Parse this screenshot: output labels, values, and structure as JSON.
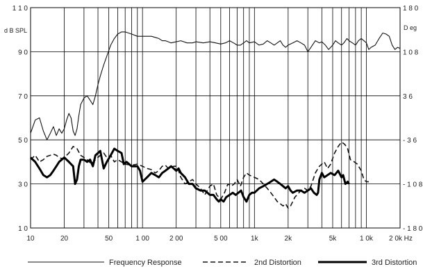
{
  "chart_data": {
    "type": "line",
    "title": "",
    "xlabel": "",
    "ylabel": "d B SPL",
    "ylabel_right": "D eg",
    "x_scale": "log",
    "xlim": [
      10,
      20000
    ],
    "ylim": [
      10,
      110
    ],
    "ylim_right": [
      -180,
      180
    ],
    "grid": true,
    "legend_position": "bottom",
    "x_tick_labels": [
      {
        "v": 10,
        "t": "10"
      },
      {
        "v": 20,
        "t": "20"
      },
      {
        "v": 50,
        "t": "50"
      },
      {
        "v": 100,
        "t": "1 00"
      },
      {
        "v": 200,
        "t": "2 00"
      },
      {
        "v": 500,
        "t": "5 00"
      },
      {
        "v": 1000,
        "t": "1k"
      },
      {
        "v": 2000,
        "t": "2k"
      },
      {
        "v": 5000,
        "t": "5k"
      },
      {
        "v": 10000,
        "t": "1 0k"
      },
      {
        "v": 20000,
        "t": "2 0k Hz"
      }
    ],
    "y_tick_labels": [
      {
        "v": 110,
        "t": "1 1 0"
      },
      {
        "v": 90,
        "t": "9 0"
      },
      {
        "v": 70,
        "t": "7 0"
      },
      {
        "v": 50,
        "t": "5 0"
      },
      {
        "v": 30,
        "t": "3 0"
      },
      {
        "v": 10,
        "t": "1 0"
      }
    ],
    "y_tick_labels_right": [
      {
        "v": 180,
        "t": "1 8 0"
      },
      {
        "v": 108,
        "t": "1 0 8"
      },
      {
        "v": 36,
        "t": "3 6"
      },
      {
        "v": -36,
        "t": "- 3 6"
      },
      {
        "v": -108,
        "t": "- 1 0 8"
      },
      {
        "v": -180,
        "t": "- 1 8 0"
      }
    ],
    "series": [
      {
        "name": "Frequency Response",
        "style": "solid-thin",
        "points": [
          [
            10,
            53
          ],
          [
            11,
            59
          ],
          [
            12,
            60
          ],
          [
            13,
            54
          ],
          [
            14,
            50
          ],
          [
            15,
            53
          ],
          [
            16,
            56
          ],
          [
            17,
            52
          ],
          [
            18,
            55
          ],
          [
            19,
            53
          ],
          [
            20,
            55
          ],
          [
            21,
            59
          ],
          [
            22,
            62
          ],
          [
            23,
            60
          ],
          [
            24,
            54
          ],
          [
            25,
            52
          ],
          [
            26,
            55
          ],
          [
            27,
            61
          ],
          [
            28,
            66
          ],
          [
            30,
            69
          ],
          [
            32,
            70
          ],
          [
            34,
            68
          ],
          [
            36,
            66
          ],
          [
            38,
            70
          ],
          [
            40,
            75
          ],
          [
            42,
            79
          ],
          [
            45,
            84
          ],
          [
            48,
            88
          ],
          [
            52,
            93
          ],
          [
            56,
            96
          ],
          [
            60,
            98
          ],
          [
            65,
            99
          ],
          [
            70,
            99
          ],
          [
            80,
            98
          ],
          [
            90,
            97
          ],
          [
            100,
            97
          ],
          [
            110,
            97
          ],
          [
            120,
            97
          ],
          [
            130,
            96.5
          ],
          [
            140,
            96
          ],
          [
            150,
            95
          ],
          [
            160,
            95
          ],
          [
            170,
            94.5
          ],
          [
            180,
            94
          ],
          [
            200,
            94.5
          ],
          [
            220,
            95
          ],
          [
            250,
            94
          ],
          [
            280,
            94
          ],
          [
            300,
            94.5
          ],
          [
            350,
            94
          ],
          [
            400,
            94.5
          ],
          [
            450,
            94
          ],
          [
            500,
            93.5
          ],
          [
            550,
            94
          ],
          [
            600,
            95
          ],
          [
            650,
            94
          ],
          [
            700,
            93
          ],
          [
            750,
            93
          ],
          [
            800,
            94
          ],
          [
            850,
            95
          ],
          [
            900,
            94
          ],
          [
            1000,
            94.5
          ],
          [
            1100,
            93
          ],
          [
            1200,
            93.5
          ],
          [
            1300,
            95
          ],
          [
            1400,
            94
          ],
          [
            1500,
            93
          ],
          [
            1600,
            94
          ],
          [
            1700,
            95
          ],
          [
            1800,
            93
          ],
          [
            1900,
            92
          ],
          [
            2000,
            93
          ],
          [
            2200,
            94
          ],
          [
            2400,
            95
          ],
          [
            2600,
            94
          ],
          [
            2800,
            93
          ],
          [
            3000,
            90
          ],
          [
            3200,
            92
          ],
          [
            3500,
            95
          ],
          [
            3800,
            94
          ],
          [
            4000,
            94.5
          ],
          [
            4300,
            93
          ],
          [
            4600,
            91
          ],
          [
            5000,
            93
          ],
          [
            5300,
            95
          ],
          [
            5600,
            94
          ],
          [
            6000,
            93
          ],
          [
            6300,
            94
          ],
          [
            6700,
            96
          ],
          [
            7000,
            95
          ],
          [
            7500,
            94
          ],
          [
            8000,
            93
          ],
          [
            8500,
            95
          ],
          [
            9000,
            96
          ],
          [
            9500,
            95
          ],
          [
            10000,
            94
          ],
          [
            10500,
            91
          ],
          [
            11000,
            92
          ],
          [
            12000,
            93
          ],
          [
            13000,
            96
          ],
          [
            14000,
            98.5
          ],
          [
            15000,
            98
          ],
          [
            16000,
            97
          ],
          [
            17000,
            93
          ],
          [
            18000,
            91
          ],
          [
            19000,
            92
          ],
          [
            20000,
            91.5
          ]
        ]
      },
      {
        "name": "2nd Distortion",
        "style": "dashed",
        "points": [
          [
            10,
            41
          ],
          [
            11,
            43
          ],
          [
            12,
            40
          ],
          [
            13,
            41
          ],
          [
            14,
            42.5
          ],
          [
            15,
            43
          ],
          [
            16,
            43.5
          ],
          [
            17,
            43
          ],
          [
            18,
            42
          ],
          [
            19,
            41.5
          ],
          [
            20,
            42
          ],
          [
            22,
            44
          ],
          [
            24,
            47
          ],
          [
            26,
            46
          ],
          [
            28,
            43
          ],
          [
            30,
            42
          ],
          [
            32,
            41
          ],
          [
            35,
            39
          ],
          [
            38,
            41
          ],
          [
            42,
            43
          ],
          [
            45,
            44
          ],
          [
            48,
            42
          ],
          [
            52,
            43
          ],
          [
            56,
            40
          ],
          [
            60,
            41
          ],
          [
            65,
            40
          ],
          [
            70,
            39
          ],
          [
            80,
            38.5
          ],
          [
            90,
            39
          ],
          [
            100,
            38
          ],
          [
            110,
            37
          ],
          [
            120,
            36.5
          ],
          [
            130,
            35
          ],
          [
            140,
            36
          ],
          [
            150,
            38
          ],
          [
            160,
            38.5
          ],
          [
            170,
            37
          ],
          [
            180,
            37.5
          ],
          [
            190,
            38
          ],
          [
            200,
            38
          ],
          [
            210,
            36
          ],
          [
            220,
            33
          ],
          [
            240,
            30
          ],
          [
            260,
            31
          ],
          [
            280,
            32
          ],
          [
            300,
            30
          ],
          [
            330,
            28
          ],
          [
            360,
            25
          ],
          [
            400,
            29
          ],
          [
            430,
            30
          ],
          [
            460,
            25
          ],
          [
            500,
            23
          ],
          [
            540,
            26
          ],
          [
            580,
            30
          ],
          [
            620,
            29
          ],
          [
            660,
            30
          ],
          [
            700,
            32
          ],
          [
            750,
            29
          ],
          [
            800,
            33
          ],
          [
            850,
            35
          ],
          [
            900,
            34
          ],
          [
            1000,
            33
          ],
          [
            1100,
            32
          ],
          [
            1200,
            30
          ],
          [
            1300,
            28
          ],
          [
            1400,
            26
          ],
          [
            1500,
            24
          ],
          [
            1600,
            22
          ],
          [
            1700,
            21
          ],
          [
            1800,
            20
          ],
          [
            1900,
            21
          ],
          [
            2000,
            19
          ],
          [
            2100,
            20
          ],
          [
            2200,
            22
          ],
          [
            2300,
            24
          ],
          [
            2400,
            25
          ],
          [
            2600,
            27
          ],
          [
            2800,
            28
          ],
          [
            3000,
            27
          ],
          [
            3200,
            29
          ],
          [
            3500,
            35
          ],
          [
            3800,
            38
          ],
          [
            4000,
            39
          ],
          [
            4200,
            40
          ],
          [
            4500,
            37
          ],
          [
            4800,
            39
          ],
          [
            5200,
            44
          ],
          [
            5600,
            47
          ],
          [
            6000,
            49
          ],
          [
            6400,
            48
          ],
          [
            6800,
            46
          ],
          [
            7200,
            41
          ],
          [
            7800,
            40
          ],
          [
            8300,
            39
          ],
          [
            9000,
            36
          ],
          [
            9500,
            32
          ],
          [
            10000,
            31
          ],
          [
            10500,
            31
          ]
        ]
      },
      {
        "name": "3rd Distortion",
        "style": "solid-thick",
        "points": [
          [
            10,
            42
          ],
          [
            11,
            40
          ],
          [
            12,
            37
          ],
          [
            13,
            34
          ],
          [
            14,
            33
          ],
          [
            15,
            34
          ],
          [
            16,
            36
          ],
          [
            17,
            38
          ],
          [
            18,
            40
          ],
          [
            19,
            41
          ],
          [
            20,
            42
          ],
          [
            22,
            40
          ],
          [
            24,
            38
          ],
          [
            25,
            30
          ],
          [
            26,
            32
          ],
          [
            27,
            38
          ],
          [
            28,
            41
          ],
          [
            30,
            41
          ],
          [
            32,
            40
          ],
          [
            34,
            41
          ],
          [
            36,
            38
          ],
          [
            38,
            43
          ],
          [
            40,
            44
          ],
          [
            42,
            45
          ],
          [
            45,
            37
          ],
          [
            48,
            40
          ],
          [
            52,
            43
          ],
          [
            56,
            46
          ],
          [
            60,
            45
          ],
          [
            65,
            44
          ],
          [
            68,
            39
          ],
          [
            72,
            40
          ],
          [
            80,
            38
          ],
          [
            90,
            38
          ],
          [
            95,
            36
          ],
          [
            100,
            31
          ],
          [
            110,
            33
          ],
          [
            120,
            35
          ],
          [
            130,
            34
          ],
          [
            140,
            33
          ],
          [
            150,
            35
          ],
          [
            160,
            36
          ],
          [
            170,
            37
          ],
          [
            180,
            38
          ],
          [
            190,
            37
          ],
          [
            200,
            36
          ],
          [
            210,
            37
          ],
          [
            220,
            35
          ],
          [
            240,
            33
          ],
          [
            260,
            30
          ],
          [
            280,
            30
          ],
          [
            300,
            28
          ],
          [
            330,
            27
          ],
          [
            360,
            27
          ],
          [
            400,
            25
          ],
          [
            430,
            25
          ],
          [
            460,
            23
          ],
          [
            480,
            22
          ],
          [
            500,
            23
          ],
          [
            530,
            22
          ],
          [
            560,
            24
          ],
          [
            600,
            25
          ],
          [
            640,
            26
          ],
          [
            680,
            25
          ],
          [
            720,
            26
          ],
          [
            760,
            27
          ],
          [
            800,
            24
          ],
          [
            850,
            22
          ],
          [
            900,
            25
          ],
          [
            950,
            26
          ],
          [
            1000,
            26
          ],
          [
            1100,
            28
          ],
          [
            1200,
            29
          ],
          [
            1300,
            30
          ],
          [
            1400,
            31
          ],
          [
            1500,
            32
          ],
          [
            1600,
            31
          ],
          [
            1700,
            30
          ],
          [
            1800,
            29
          ],
          [
            1900,
            28
          ],
          [
            2000,
            29
          ],
          [
            2100,
            27
          ],
          [
            2200,
            26
          ],
          [
            2400,
            27
          ],
          [
            2600,
            27
          ],
          [
            2800,
            26
          ],
          [
            3000,
            27
          ],
          [
            3200,
            28
          ],
          [
            3400,
            26
          ],
          [
            3600,
            25
          ],
          [
            3700,
            26
          ],
          [
            3800,
            32
          ],
          [
            4000,
            35
          ],
          [
            4200,
            33
          ],
          [
            4500,
            34
          ],
          [
            4800,
            35
          ],
          [
            5200,
            34
          ],
          [
            5600,
            36
          ],
          [
            6000,
            33
          ],
          [
            6200,
            34
          ],
          [
            6500,
            30
          ],
          [
            6800,
            31
          ],
          [
            7000,
            30
          ]
        ]
      }
    ]
  }
}
